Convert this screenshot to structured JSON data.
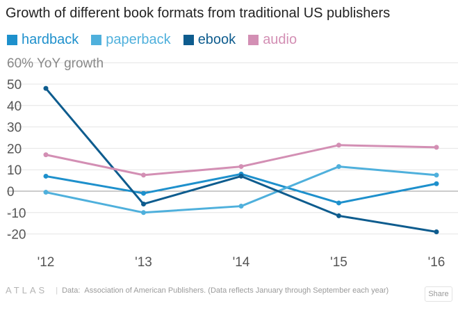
{
  "colors": {
    "hardback": "#1e90cc",
    "paperback": "#4fb0dc",
    "ebook": "#0e5c8e",
    "audio": "#d38fb4",
    "grid": "#e4e4e4",
    "zero": "#999999"
  },
  "footer": {
    "logo": "ATLAS",
    "separator": "|",
    "source_label": "Data:",
    "source_text": "Association of American Publishers. (Data reflects January through September each year)"
  },
  "share_label": "Share",
  "chart_data": {
    "type": "line",
    "title": "Growth of different book formats from traditional US publishers",
    "ylabel": "60% YoY growth",
    "xlabel": "",
    "ylim": [
      -20,
      60
    ],
    "y_ticks": [
      -20,
      -10,
      0,
      10,
      20,
      30,
      40,
      50
    ],
    "y_tick_labels": [
      "-20",
      "-10",
      "0",
      "10",
      "20",
      "30",
      "40",
      "50"
    ],
    "categories": [
      "'12",
      "'13",
      "'14",
      "'15",
      "'16"
    ],
    "legend_position": "top-left",
    "grid": true,
    "series": [
      {
        "name": "hardback",
        "key": "hardback",
        "values": [
          7,
          -1,
          8,
          -5.5,
          3.5
        ]
      },
      {
        "name": "paperback",
        "key": "paperback",
        "values": [
          -0.5,
          -10,
          -7,
          11.5,
          7.5
        ]
      },
      {
        "name": "ebook",
        "key": "ebook",
        "values": [
          48,
          -6,
          7,
          -11.5,
          -19
        ]
      },
      {
        "name": "audio",
        "key": "audio",
        "values": [
          17,
          7.5,
          11.5,
          21.5,
          20.5
        ]
      }
    ]
  }
}
